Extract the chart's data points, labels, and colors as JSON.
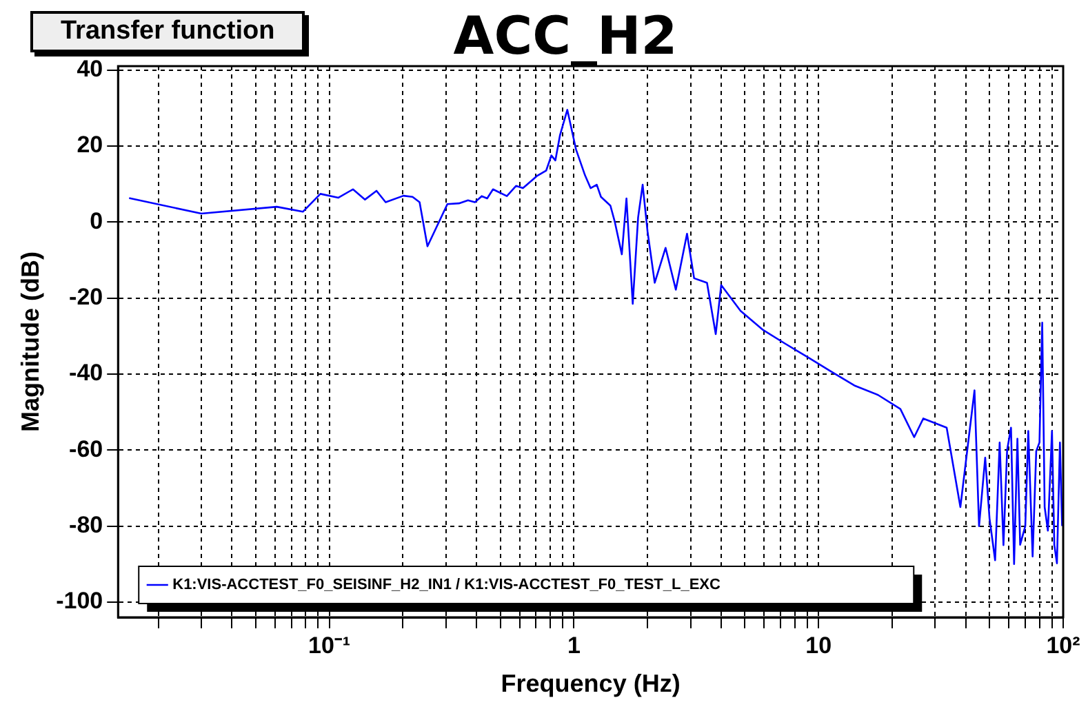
{
  "chart_data": {
    "type": "line",
    "title": "ACC_H2",
    "xlabel": "Frequency (Hz)",
    "ylabel": "Magnitude (dB)",
    "annotations": [
      "Transfer function"
    ],
    "log": "x",
    "grid": true,
    "legend": "bottom",
    "marker": "none",
    "line_style": "solid",
    "xlim": [
      0.0137,
      100
    ],
    "ylim": [
      -104,
      41
    ],
    "xticks": [
      {
        "value": 0.02,
        "label": null
      },
      {
        "value": 0.03,
        "label": null
      },
      {
        "value": 0.04,
        "label": null
      },
      {
        "value": 0.05,
        "label": null
      },
      {
        "value": 0.06,
        "label": null
      },
      {
        "value": 0.07,
        "label": null
      },
      {
        "value": 0.08,
        "label": null
      },
      {
        "value": 0.09,
        "label": null
      },
      {
        "value": 0.1,
        "label": "10⁻¹"
      },
      {
        "value": 0.2,
        "label": null
      },
      {
        "value": 0.3,
        "label": null
      },
      {
        "value": 0.4,
        "label": null
      },
      {
        "value": 0.5,
        "label": null
      },
      {
        "value": 0.6,
        "label": null
      },
      {
        "value": 0.7,
        "label": null
      },
      {
        "value": 0.8,
        "label": null
      },
      {
        "value": 0.9,
        "label": null
      },
      1,
      {
        "value": 2,
        "label": null
      },
      {
        "value": 3,
        "label": null
      },
      {
        "value": 4,
        "label": null
      },
      {
        "value": 5,
        "label": null
      },
      {
        "value": 6,
        "label": null
      },
      {
        "value": 7,
        "label": null
      },
      {
        "value": 8,
        "label": null
      },
      {
        "value": 9,
        "label": null
      },
      10,
      {
        "value": 20,
        "label": null
      },
      {
        "value": 30,
        "label": null
      },
      {
        "value": 40,
        "label": null
      },
      {
        "value": 50,
        "label": null
      },
      {
        "value": 60,
        "label": null
      },
      {
        "value": 70,
        "label": null
      },
      {
        "value": 80,
        "label": null
      },
      {
        "value": 90,
        "label": null
      },
      {
        "value": 100,
        "label": "10²"
      }
    ],
    "yticks": [
      -100,
      -80,
      -60,
      -40,
      -20,
      0,
      20,
      40
    ],
    "series": [
      {
        "name": "K1:VIS-ACCTEST_F0_SEISINF_H2_IN1 / K1:VIS-ACCTEST_F0_TEST_L_EXC",
        "color": "#0000ff",
        "x": [
          0.0152,
          0.03,
          0.061,
          0.078,
          0.092,
          0.109,
          0.125,
          0.14,
          0.156,
          0.17,
          0.201,
          0.219,
          0.234,
          0.252,
          0.304,
          0.339,
          0.369,
          0.394,
          0.42,
          0.442,
          0.467,
          0.532,
          0.58,
          0.619,
          0.706,
          0.77,
          0.809,
          0.84,
          0.877,
          0.94,
          1.02,
          1.11,
          1.17,
          1.24,
          1.29,
          1.41,
          1.47,
          1.57,
          1.64,
          1.74,
          1.83,
          1.91,
          2.0,
          2.14,
          2.37,
          2.61,
          2.9,
          3.1,
          3.5,
          3.8,
          4.0,
          4.8,
          5.9,
          7.3,
          9.1,
          11.3,
          14.0,
          17.5,
          21.6,
          24.6,
          26.8,
          33.4,
          38.0,
          43.4,
          45.3,
          48,
          50,
          52.7,
          55,
          57,
          59,
          61.2,
          63,
          65,
          66.7,
          70,
          72,
          75,
          77.6,
          80,
          82.1,
          84,
          86.6,
          90,
          92,
          94.3,
          97,
          99
        ],
        "values": [
          6.3,
          2.2,
          4.0,
          2.7,
          7.4,
          6.4,
          8.6,
          5.9,
          8.2,
          5.2,
          6.9,
          6.6,
          5.2,
          -6.4,
          4.7,
          4.9,
          5.7,
          5.2,
          6.8,
          6.2,
          8.6,
          6.8,
          9.5,
          8.9,
          12.1,
          13.5,
          17.5,
          16.2,
          22.8,
          29.5,
          19.1,
          12.3,
          8.9,
          9.8,
          6.6,
          4.3,
          0,
          -8.5,
          6.2,
          -21.5,
          1.2,
          9.8,
          -2.5,
          -16,
          -6.8,
          -17.8,
          -3.1,
          -14.8,
          -16,
          -29.5,
          -16.6,
          -23.4,
          -28.3,
          -32,
          -35.7,
          -39.4,
          -43,
          -45.5,
          -49.2,
          -56.6,
          -51.7,
          -54.1,
          -75,
          -44.3,
          -80,
          -62,
          -78,
          -89,
          -58,
          -85,
          -60,
          -54.1,
          -90,
          -57,
          -84.9,
          -80,
          -55,
          -88,
          -60.3,
          -58,
          -26.5,
          -75,
          -81.2,
          -55,
          -85,
          -89.8,
          -58,
          -80
        ]
      }
    ]
  }
}
